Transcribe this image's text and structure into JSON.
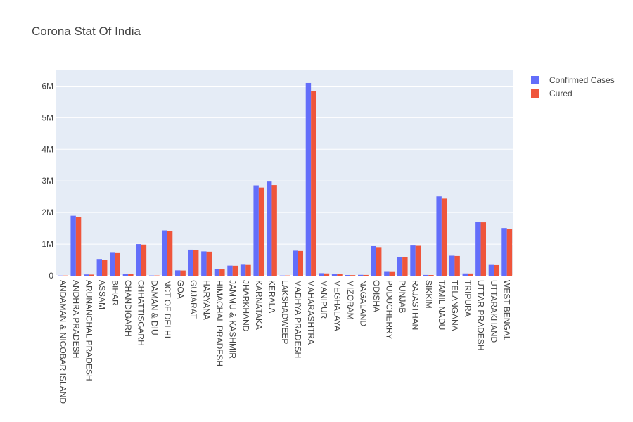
{
  "chart_data": {
    "type": "bar",
    "title": "Corona Stat Of India",
    "xlabel": "",
    "ylabel": "",
    "ylim": [
      0,
      6500000
    ],
    "yticks": [
      0,
      1000000,
      2000000,
      3000000,
      4000000,
      5000000,
      6000000
    ],
    "ytick_labels": [
      "0",
      "1M",
      "2M",
      "3M",
      "4M",
      "5M",
      "6M"
    ],
    "grid": true,
    "legend_position": "top-right",
    "categories": [
      "ANDAMAN & NICOBAR ISLAND",
      "ANDHRA PRADESH",
      "ARUNANCHAL PRADESH",
      "ASSAM",
      "BIHAR",
      "CHANDIGARH",
      "CHHATTISGARH",
      "DAMAN & DIU",
      "NCT OF DELHI",
      "GOA",
      "GUJARAT",
      "HARYANA",
      "HIMACHAL PRADESH",
      "JAMMU & KASHMIR",
      "JHARKHAND",
      "KARNATAKA",
      "KERALA",
      "LAKSHADWEEP",
      "MADHYA PRADESH",
      "MAHARASHTRA",
      "MANIPUR",
      "MEGHALAYA",
      "MIZORAM",
      "NAGALAND",
      "ODISHA",
      "PUDUCHERRY",
      "PUNJAB",
      "RAJASTHAN",
      "SIKKIM",
      "TAMIL NADU",
      "TELANGANA",
      "TRIPURA",
      "UTTAR PRADESH",
      "UTTARAKHAND",
      "WEST BENGAL"
    ],
    "series": [
      {
        "name": "Confirmed Cases",
        "color": "#636efa",
        "values": [
          7500,
          1900000,
          40000,
          530000,
          725000,
          62000,
          1000000,
          10000,
          1435000,
          170000,
          825000,
          770000,
          205000,
          320000,
          348000,
          2860000,
          2980000,
          9000,
          792000,
          6100000,
          80000,
          57000,
          22000,
          27000,
          935000,
          122000,
          598000,
          955000,
          24000,
          2510000,
          635000,
          72000,
          1710000,
          342000,
          1510000
        ]
      },
      {
        "name": "Cured",
        "color": "#ef553b",
        "values": [
          7300,
          1860000,
          35000,
          495000,
          715000,
          60000,
          985000,
          9500,
          1410000,
          165000,
          815000,
          760000,
          200000,
          315000,
          340000,
          2790000,
          2870000,
          8500,
          782000,
          5850000,
          72000,
          52000,
          19000,
          24000,
          905000,
          118000,
          583000,
          945000,
          22000,
          2440000,
          625000,
          70000,
          1690000,
          335000,
          1480000
        ]
      }
    ]
  }
}
